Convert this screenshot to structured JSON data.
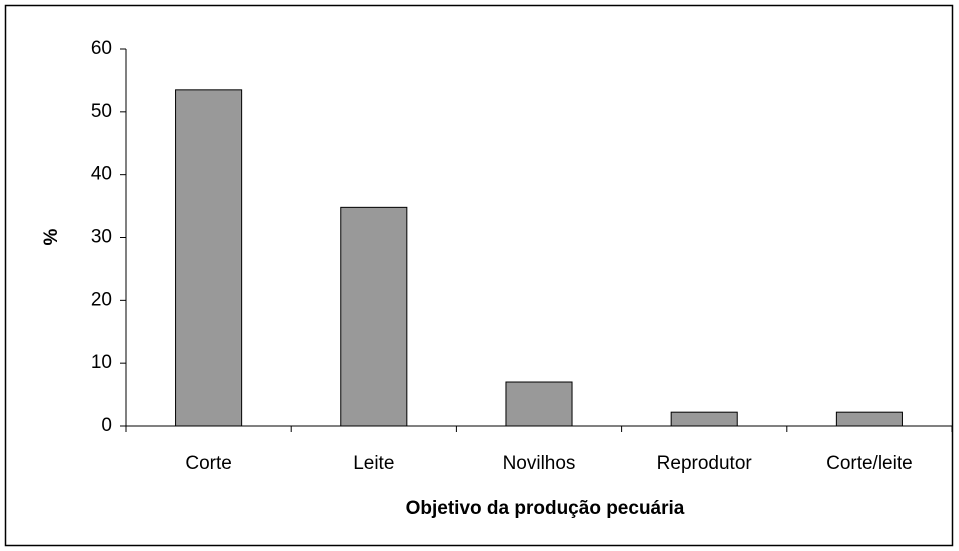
{
  "chart_data": {
    "type": "bar",
    "categories": [
      "Corte",
      "Leite",
      "Novilhos",
      "Reprodutor",
      "Corte/leite"
    ],
    "values": [
      53.5,
      34.8,
      7,
      2.2,
      2.2
    ],
    "color": "#999999",
    "x_label": "Objetivo da produção pecuária",
    "y_label": "%",
    "ylim": [
      0,
      60
    ],
    "yticks": [
      0,
      10,
      20,
      30,
      40,
      50,
      60
    ],
    "grid": false
  }
}
